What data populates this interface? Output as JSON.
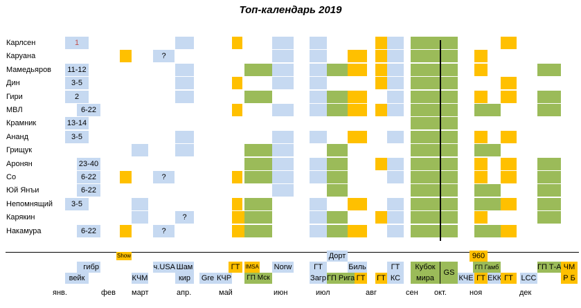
{
  "title": "Топ-календарь 2019",
  "colors": {
    "blue": "#c6d9f1",
    "orange": "#ffc000",
    "green": "#9bbb59",
    "red_text": "#c0504d"
  },
  "players": [
    {
      "name": "Карлсен",
      "cells": [
        {
          "c": "c1",
          "t": "b",
          "text": "1",
          "red": true
        },
        {
          "c": "c5",
          "t": "b"
        },
        {
          "c": "o6",
          "t": "o"
        },
        {
          "c": "b8",
          "t": "b"
        },
        {
          "c": "b9",
          "t": "b"
        },
        {
          "c": "o12",
          "t": "o"
        },
        {
          "c": "b13",
          "t": "b"
        },
        {
          "c": "G",
          "t": "g"
        },
        {
          "c": "o16",
          "t": "o"
        }
      ]
    },
    {
      "name": "Каруана",
      "cells": [
        {
          "c": "c2",
          "t": "o"
        },
        {
          "c": "c4",
          "t": "b",
          "text": "?"
        },
        {
          "c": "b8",
          "t": "b"
        },
        {
          "c": "b9",
          "t": "b"
        },
        {
          "c": "o11",
          "t": "o"
        },
        {
          "c": "o12",
          "t": "o"
        },
        {
          "c": "b13",
          "t": "b"
        },
        {
          "c": "G",
          "t": "g"
        },
        {
          "c": "o15",
          "t": "o"
        }
      ]
    },
    {
      "name": "Мамедьяров",
      "cells": [
        {
          "c": "c1",
          "t": "b",
          "text": "11-12"
        },
        {
          "c": "c5",
          "t": "b"
        },
        {
          "c": "g7",
          "t": "g"
        },
        {
          "c": "b8",
          "t": "b"
        },
        {
          "c": "b9",
          "t": "b"
        },
        {
          "c": "g10",
          "t": "g"
        },
        {
          "c": "o11",
          "t": "o"
        },
        {
          "c": "o12",
          "t": "o"
        },
        {
          "c": "b13",
          "t": "b"
        },
        {
          "c": "G",
          "t": "g"
        },
        {
          "c": "o15",
          "t": "o"
        },
        {
          "c": "g17",
          "t": "g"
        }
      ]
    },
    {
      "name": "Дин",
      "cells": [
        {
          "c": "c1",
          "t": "b",
          "text": "3-5"
        },
        {
          "c": "c5",
          "t": "b"
        },
        {
          "c": "o6",
          "t": "o"
        },
        {
          "c": "b8",
          "t": "b"
        },
        {
          "c": "b9",
          "t": "b"
        },
        {
          "c": "o12",
          "t": "o"
        },
        {
          "c": "b13",
          "t": "b"
        },
        {
          "c": "G",
          "t": "g"
        },
        {
          "c": "o16",
          "t": "o"
        }
      ]
    },
    {
      "name": "Гири",
      "cells": [
        {
          "c": "c1",
          "t": "b",
          "text": "2"
        },
        {
          "c": "c5",
          "t": "b"
        },
        {
          "c": "g7",
          "t": "g"
        },
        {
          "c": "b9",
          "t": "b"
        },
        {
          "c": "g10",
          "t": "g"
        },
        {
          "c": "o11",
          "t": "o"
        },
        {
          "c": "b13",
          "t": "b"
        },
        {
          "c": "G",
          "t": "g"
        },
        {
          "c": "o15",
          "t": "o"
        },
        {
          "c": "o16",
          "t": "o"
        },
        {
          "c": "g17",
          "t": "g"
        }
      ]
    },
    {
      "name": "МВЛ",
      "cells": [
        {
          "c": "c1b",
          "t": "b",
          "text": "6-22"
        },
        {
          "c": "o6",
          "t": "o"
        },
        {
          "c": "b8",
          "t": "b"
        },
        {
          "c": "b9",
          "t": "b"
        },
        {
          "c": "g10",
          "t": "g"
        },
        {
          "c": "o11",
          "t": "o"
        },
        {
          "c": "o12",
          "t": "o"
        },
        {
          "c": "b13",
          "t": "b"
        },
        {
          "c": "G",
          "t": "g"
        },
        {
          "c": "g15",
          "t": "g"
        },
        {
          "c": "g17",
          "t": "g"
        }
      ]
    },
    {
      "name": "Крамник",
      "cells": [
        {
          "c": "c1",
          "t": "b",
          "text": "13-14"
        },
        {
          "c": "G",
          "t": "g"
        }
      ]
    },
    {
      "name": "Ананд",
      "cells": [
        {
          "c": "c1",
          "t": "b",
          "text": "3-5"
        },
        {
          "c": "c5",
          "t": "b"
        },
        {
          "c": "b8",
          "t": "b"
        },
        {
          "c": "b9",
          "t": "b"
        },
        {
          "c": "o11",
          "t": "o"
        },
        {
          "c": "b13",
          "t": "b"
        },
        {
          "c": "G",
          "t": "g"
        },
        {
          "c": "o15",
          "t": "o"
        },
        {
          "c": "o16",
          "t": "o"
        }
      ]
    },
    {
      "name": "Грищук",
      "cells": [
        {
          "c": "c3",
          "t": "b"
        },
        {
          "c": "c5",
          "t": "b"
        },
        {
          "c": "g7",
          "t": "g"
        },
        {
          "c": "b8",
          "t": "b"
        },
        {
          "c": "g10",
          "t": "g"
        },
        {
          "c": "G",
          "t": "g"
        },
        {
          "c": "g15",
          "t": "g"
        }
      ]
    },
    {
      "name": "Аронян",
      "cells": [
        {
          "c": "c1b",
          "t": "b",
          "text": "23-40"
        },
        {
          "c": "g7",
          "t": "g"
        },
        {
          "c": "b8",
          "t": "b"
        },
        {
          "c": "b9",
          "t": "b"
        },
        {
          "c": "g10",
          "t": "g"
        },
        {
          "c": "o12",
          "t": "o"
        },
        {
          "c": "b13",
          "t": "b"
        },
        {
          "c": "G",
          "t": "g"
        },
        {
          "c": "o15",
          "t": "o"
        },
        {
          "c": "o16",
          "t": "o"
        },
        {
          "c": "g17",
          "t": "g"
        }
      ]
    },
    {
      "name": "Со",
      "cells": [
        {
          "c": "c1b",
          "t": "b",
          "text": "6-22"
        },
        {
          "c": "c2",
          "t": "o"
        },
        {
          "c": "c4",
          "t": "b",
          "text": "?"
        },
        {
          "c": "o6",
          "t": "o"
        },
        {
          "c": "g7",
          "t": "g"
        },
        {
          "c": "b8",
          "t": "b"
        },
        {
          "c": "b9",
          "t": "b"
        },
        {
          "c": "g10",
          "t": "g"
        },
        {
          "c": "b13",
          "t": "b"
        },
        {
          "c": "G",
          "t": "g"
        },
        {
          "c": "o15",
          "t": "o"
        },
        {
          "c": "o16",
          "t": "o"
        },
        {
          "c": "g17",
          "t": "g"
        }
      ]
    },
    {
      "name": "Юй Янъи",
      "cells": [
        {
          "c": "c1b",
          "t": "b",
          "text": "6-22"
        },
        {
          "c": "b8",
          "t": "b"
        },
        {
          "c": "g10",
          "t": "g"
        },
        {
          "c": "G",
          "t": "g"
        },
        {
          "c": "g15",
          "t": "g"
        },
        {
          "c": "g17",
          "t": "g"
        }
      ]
    },
    {
      "name": "Непомнящий",
      "cells": [
        {
          "c": "c1",
          "t": "b",
          "text": "3-5"
        },
        {
          "c": "c3",
          "t": "b"
        },
        {
          "c": "o6",
          "t": "o"
        },
        {
          "c": "g7",
          "t": "g"
        },
        {
          "c": "b9",
          "t": "b"
        },
        {
          "c": "o11",
          "t": "o"
        },
        {
          "c": "b13",
          "t": "b"
        },
        {
          "c": "G",
          "t": "g"
        },
        {
          "c": "g15",
          "t": "g"
        },
        {
          "c": "o16",
          "t": "o"
        },
        {
          "c": "g17",
          "t": "g"
        }
      ]
    },
    {
      "name": "Карякин",
      "cells": [
        {
          "c": "c3",
          "t": "b"
        },
        {
          "c": "c5",
          "t": "b",
          "text": "?"
        },
        {
          "c": "o6w",
          "t": "o"
        },
        {
          "c": "g7n",
          "t": "g"
        },
        {
          "c": "b9",
          "t": "b"
        },
        {
          "c": "g10",
          "t": "g"
        },
        {
          "c": "o12",
          "t": "o"
        },
        {
          "c": "b13",
          "t": "b"
        },
        {
          "c": "G",
          "t": "g"
        },
        {
          "c": "o15",
          "t": "o"
        },
        {
          "c": "g17",
          "t": "g"
        }
      ]
    },
    {
      "name": "Накамура",
      "cells": [
        {
          "c": "c1b",
          "t": "b",
          "text": "6-22"
        },
        {
          "c": "c2",
          "t": "o"
        },
        {
          "c": "c4",
          "t": "b",
          "text": "?"
        },
        {
          "c": "o6w",
          "t": "o"
        },
        {
          "c": "g7n",
          "t": "g"
        },
        {
          "c": "b9",
          "t": "b"
        },
        {
          "c": "g10",
          "t": "g"
        },
        {
          "c": "o11",
          "t": "o"
        },
        {
          "c": "b13",
          "t": "b"
        },
        {
          "c": "G",
          "t": "g"
        },
        {
          "c": "g15",
          "t": "g"
        },
        {
          "c": "o16",
          "t": "o"
        }
      ]
    }
  ],
  "events": {
    "show": "Show",
    "gibr": "гибр",
    "veik": "вейк",
    "kchm": "КЧМ",
    "chusa": "ч.USA",
    "sham": "Шам",
    "kir": "кир",
    "gre": "Gre",
    "kchr": "КЧР",
    "gt_may": "ГТ",
    "imsa": "IMSA",
    "gp_msk": "ГП Мск",
    "norw": "Norw",
    "dort": "Дорт",
    "gt_zagr": "ГТ",
    "zagr": "Загр",
    "gp_riga": "ГП Рига",
    "bil": "Биль",
    "gt_jul": "ГТ",
    "gt_aug": "ГТ",
    "gt_ks": "ГТ",
    "ks": "КС",
    "kubok": "Кубок",
    "mira": "мира",
    "gs": "GS",
    "n960": "960",
    "gp_gamb": "ГП Гамб",
    "kche": "КЧЕ",
    "gt_nov1": "ГТ",
    "ekk": "ЕКК",
    "gt_nov2": "ГТ",
    "lcc": "LCC",
    "gp_ta": "ГП Т-А",
    "chm": "ЧМ",
    "rb": "Р Б"
  },
  "months": [
    "янв.",
    "фев",
    "март",
    "апр.",
    "май",
    "июн",
    "июл",
    "авг",
    "сен",
    "окт.",
    "ноя",
    "дек"
  ]
}
